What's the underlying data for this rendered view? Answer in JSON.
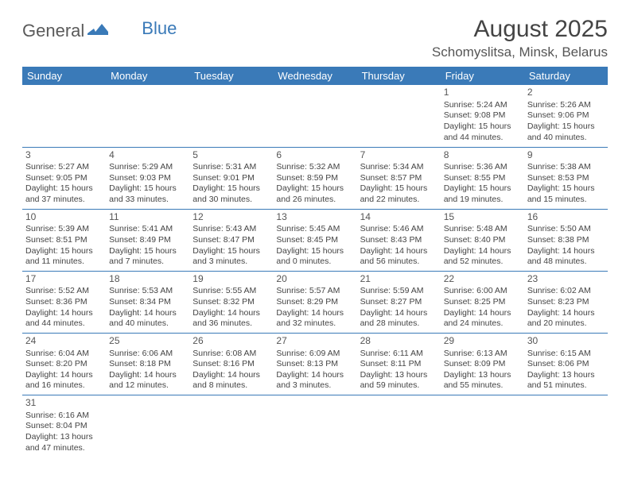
{
  "logo": {
    "part1": "General",
    "part2": "Blue"
  },
  "title": "August 2025",
  "location": "Schomyslitsa, Minsk, Belarus",
  "colors": {
    "header_bg": "#3a7ab8",
    "header_text": "#ffffff",
    "border": "#3a7ab8",
    "logo_gray": "#5a5a5a",
    "logo_blue": "#3a7ab8"
  },
  "dayHeaders": [
    "Sunday",
    "Monday",
    "Tuesday",
    "Wednesday",
    "Thursday",
    "Friday",
    "Saturday"
  ],
  "weeks": [
    [
      null,
      null,
      null,
      null,
      null,
      {
        "n": "1",
        "sr": "Sunrise: 5:24 AM",
        "ss": "Sunset: 9:08 PM",
        "dl": "Daylight: 15 hours and 44 minutes."
      },
      {
        "n": "2",
        "sr": "Sunrise: 5:26 AM",
        "ss": "Sunset: 9:06 PM",
        "dl": "Daylight: 15 hours and 40 minutes."
      }
    ],
    [
      {
        "n": "3",
        "sr": "Sunrise: 5:27 AM",
        "ss": "Sunset: 9:05 PM",
        "dl": "Daylight: 15 hours and 37 minutes."
      },
      {
        "n": "4",
        "sr": "Sunrise: 5:29 AM",
        "ss": "Sunset: 9:03 PM",
        "dl": "Daylight: 15 hours and 33 minutes."
      },
      {
        "n": "5",
        "sr": "Sunrise: 5:31 AM",
        "ss": "Sunset: 9:01 PM",
        "dl": "Daylight: 15 hours and 30 minutes."
      },
      {
        "n": "6",
        "sr": "Sunrise: 5:32 AM",
        "ss": "Sunset: 8:59 PM",
        "dl": "Daylight: 15 hours and 26 minutes."
      },
      {
        "n": "7",
        "sr": "Sunrise: 5:34 AM",
        "ss": "Sunset: 8:57 PM",
        "dl": "Daylight: 15 hours and 22 minutes."
      },
      {
        "n": "8",
        "sr": "Sunrise: 5:36 AM",
        "ss": "Sunset: 8:55 PM",
        "dl": "Daylight: 15 hours and 19 minutes."
      },
      {
        "n": "9",
        "sr": "Sunrise: 5:38 AM",
        "ss": "Sunset: 8:53 PM",
        "dl": "Daylight: 15 hours and 15 minutes."
      }
    ],
    [
      {
        "n": "10",
        "sr": "Sunrise: 5:39 AM",
        "ss": "Sunset: 8:51 PM",
        "dl": "Daylight: 15 hours and 11 minutes."
      },
      {
        "n": "11",
        "sr": "Sunrise: 5:41 AM",
        "ss": "Sunset: 8:49 PM",
        "dl": "Daylight: 15 hours and 7 minutes."
      },
      {
        "n": "12",
        "sr": "Sunrise: 5:43 AM",
        "ss": "Sunset: 8:47 PM",
        "dl": "Daylight: 15 hours and 3 minutes."
      },
      {
        "n": "13",
        "sr": "Sunrise: 5:45 AM",
        "ss": "Sunset: 8:45 PM",
        "dl": "Daylight: 15 hours and 0 minutes."
      },
      {
        "n": "14",
        "sr": "Sunrise: 5:46 AM",
        "ss": "Sunset: 8:43 PM",
        "dl": "Daylight: 14 hours and 56 minutes."
      },
      {
        "n": "15",
        "sr": "Sunrise: 5:48 AM",
        "ss": "Sunset: 8:40 PM",
        "dl": "Daylight: 14 hours and 52 minutes."
      },
      {
        "n": "16",
        "sr": "Sunrise: 5:50 AM",
        "ss": "Sunset: 8:38 PM",
        "dl": "Daylight: 14 hours and 48 minutes."
      }
    ],
    [
      {
        "n": "17",
        "sr": "Sunrise: 5:52 AM",
        "ss": "Sunset: 8:36 PM",
        "dl": "Daylight: 14 hours and 44 minutes."
      },
      {
        "n": "18",
        "sr": "Sunrise: 5:53 AM",
        "ss": "Sunset: 8:34 PM",
        "dl": "Daylight: 14 hours and 40 minutes."
      },
      {
        "n": "19",
        "sr": "Sunrise: 5:55 AM",
        "ss": "Sunset: 8:32 PM",
        "dl": "Daylight: 14 hours and 36 minutes."
      },
      {
        "n": "20",
        "sr": "Sunrise: 5:57 AM",
        "ss": "Sunset: 8:29 PM",
        "dl": "Daylight: 14 hours and 32 minutes."
      },
      {
        "n": "21",
        "sr": "Sunrise: 5:59 AM",
        "ss": "Sunset: 8:27 PM",
        "dl": "Daylight: 14 hours and 28 minutes."
      },
      {
        "n": "22",
        "sr": "Sunrise: 6:00 AM",
        "ss": "Sunset: 8:25 PM",
        "dl": "Daylight: 14 hours and 24 minutes."
      },
      {
        "n": "23",
        "sr": "Sunrise: 6:02 AM",
        "ss": "Sunset: 8:23 PM",
        "dl": "Daylight: 14 hours and 20 minutes."
      }
    ],
    [
      {
        "n": "24",
        "sr": "Sunrise: 6:04 AM",
        "ss": "Sunset: 8:20 PM",
        "dl": "Daylight: 14 hours and 16 minutes."
      },
      {
        "n": "25",
        "sr": "Sunrise: 6:06 AM",
        "ss": "Sunset: 8:18 PM",
        "dl": "Daylight: 14 hours and 12 minutes."
      },
      {
        "n": "26",
        "sr": "Sunrise: 6:08 AM",
        "ss": "Sunset: 8:16 PM",
        "dl": "Daylight: 14 hours and 8 minutes."
      },
      {
        "n": "27",
        "sr": "Sunrise: 6:09 AM",
        "ss": "Sunset: 8:13 PM",
        "dl": "Daylight: 14 hours and 3 minutes."
      },
      {
        "n": "28",
        "sr": "Sunrise: 6:11 AM",
        "ss": "Sunset: 8:11 PM",
        "dl": "Daylight: 13 hours and 59 minutes."
      },
      {
        "n": "29",
        "sr": "Sunrise: 6:13 AM",
        "ss": "Sunset: 8:09 PM",
        "dl": "Daylight: 13 hours and 55 minutes."
      },
      {
        "n": "30",
        "sr": "Sunrise: 6:15 AM",
        "ss": "Sunset: 8:06 PM",
        "dl": "Daylight: 13 hours and 51 minutes."
      }
    ],
    [
      {
        "n": "31",
        "sr": "Sunrise: 6:16 AM",
        "ss": "Sunset: 8:04 PM",
        "dl": "Daylight: 13 hours and 47 minutes."
      },
      null,
      null,
      null,
      null,
      null,
      null
    ]
  ]
}
